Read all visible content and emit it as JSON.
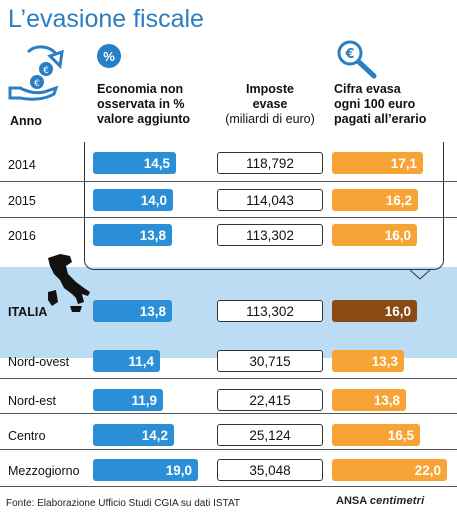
{
  "title": "L’evasione fiscale",
  "headers": {
    "anno": "Anno",
    "col1": [
      "Economia non",
      "osservata in %",
      "valore aggiunto"
    ],
    "col2_bold": [
      "Imposte",
      "evase"
    ],
    "col2_sub": "(miliardi di euro)",
    "col3": [
      "Cifra evasa",
      "ogni 100 euro",
      "pagati all’erario"
    ]
  },
  "icons": {
    "col1_symbol": "%",
    "col3_symbol": "€",
    "money_hand": "money-hand-icon",
    "magnifier": "magnifier-euro-icon",
    "italy_map": "italy-map-icon"
  },
  "colors": {
    "title": "#2a7ec4",
    "blue_bar": "#2a8fd6",
    "orange_bar": "#f7a335",
    "italia_bar": "#8a4a12",
    "italia_band": "#bcdcf3"
  },
  "chart_data": {
    "type": "table",
    "columns": [
      "Economia non osservata in % valore aggiunto",
      "Imposte evase (miliardi di euro)",
      "Cifra evasa ogni 100 euro pagati all’erario"
    ],
    "rows": [
      {
        "label": "2014",
        "economia": "14,5",
        "imposte": "118,792",
        "cifra": "17,1"
      },
      {
        "label": "2015",
        "economia": "14,0",
        "imposte": "114,043",
        "cifra": "16,2"
      },
      {
        "label": "2016",
        "economia": "13,8",
        "imposte": "113,302",
        "cifra": "16,0"
      },
      {
        "label": "ITALIA",
        "economia": "13,8",
        "imposte": "113,302",
        "cifra": "16,0"
      },
      {
        "label": "Nord-ovest",
        "economia": "11,4",
        "imposte": "30,715",
        "cifra": "13,3"
      },
      {
        "label": "Nord-est",
        "economia": "11,9",
        "imposte": "22,415",
        "cifra": "13,8"
      },
      {
        "label": "Centro",
        "economia": "14,2",
        "imposte": "25,124",
        "cifra": "16,5"
      },
      {
        "label": "Mezzogiorno",
        "economia": "19,0",
        "imposte": "35,048",
        "cifra": "22,0"
      }
    ]
  },
  "footer": "Fonte: Elaborazione Ufficio Studi CGIA su dati ISTAT",
  "brand": {
    "ansa": "ANSA",
    "centimetri": "centimetri"
  }
}
